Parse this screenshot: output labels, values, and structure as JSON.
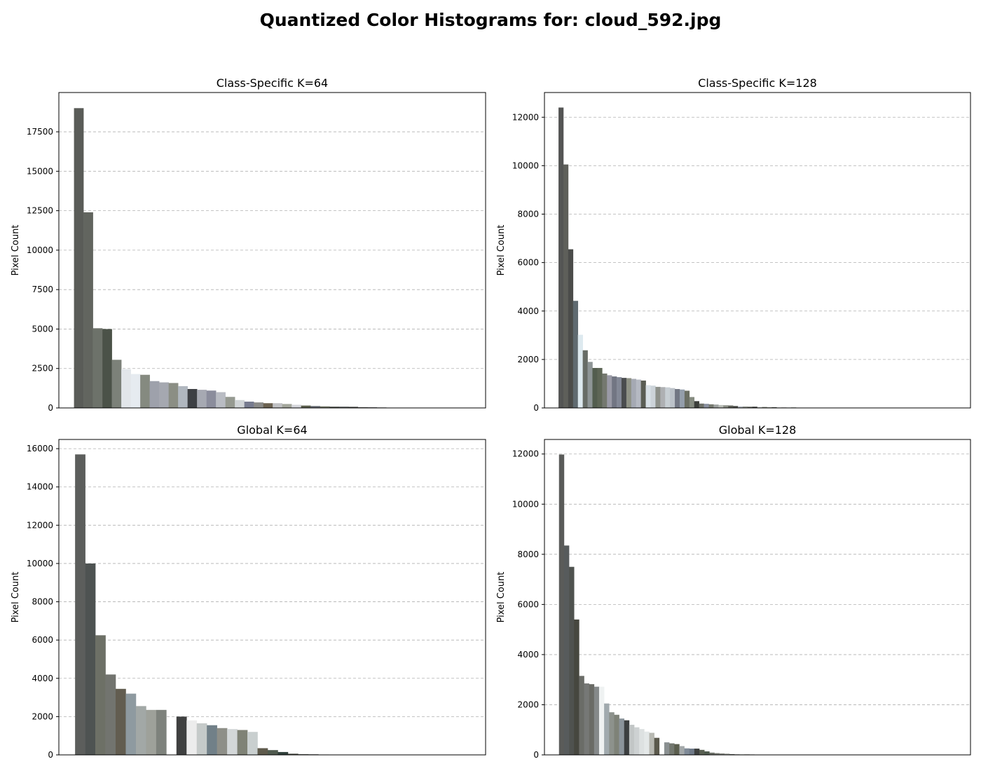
{
  "figure": {
    "title": "Quantized Color Histograms for: cloud_592.jpg"
  },
  "chart_data": [
    {
      "type": "bar",
      "title": "Class-Specific K=64",
      "xlabel": "",
      "ylabel": "Pixel Count",
      "ylim": [
        0,
        19990
      ],
      "yticks": [
        0,
        2500,
        5000,
        7500,
        10000,
        12500,
        15000,
        17500
      ],
      "xlim": [
        -2.1,
        43
      ],
      "grid": "y-dashed",
      "values": [
        19000,
        12400,
        5050,
        5000,
        3050,
        2450,
        2150,
        2100,
        1700,
        1620,
        1580,
        1380,
        1200,
        1150,
        1100,
        1000,
        700,
        500,
        400,
        350,
        300,
        300,
        250,
        200,
        150,
        120,
        100,
        80,
        80,
        70,
        50,
        40,
        30,
        20,
        20
      ],
      "colors": [
        "#5a5c58",
        "#62655f",
        "#6d726a",
        "#4b5248",
        "#7c8179",
        "#e2e6ea",
        "#e6ebf0",
        "#858a80",
        "#9ea1ab",
        "#a5a8b0",
        "#8b8e84",
        "#b0b7bf",
        "#3d4044",
        "#a6a9b2",
        "#8b8d9c",
        "#b9bcc3",
        "#969a91",
        "#d0d4d6",
        "#777b8f",
        "#8a8a88",
        "#6b6150",
        "#c0c1c4",
        "#a3a69b",
        "#d5d6db",
        "#5b5e4c",
        "#646970",
        "#707565",
        "#4c4f4a",
        "#585d5b",
        "#424540",
        "#6a6d68",
        "#56585a",
        "#4e5450",
        "#3f4240",
        "#5e6260"
      ]
    },
    {
      "type": "bar",
      "title": "Class-Specific K=128",
      "xlabel": "",
      "ylabel": "Pixel Count",
      "ylim": [
        0,
        13020
      ],
      "yticks": [
        0,
        2000,
        4000,
        6000,
        8000,
        10000,
        12000
      ],
      "xlim": [
        -3.4,
        84.5
      ],
      "grid": "y-dashed",
      "values": [
        12400,
        10050,
        6550,
        4420,
        3020,
        2380,
        1900,
        1650,
        1650,
        1420,
        1350,
        1300,
        1270,
        1240,
        1230,
        1200,
        1170,
        1130,
        940,
        920,
        870,
        860,
        850,
        820,
        780,
        760,
        710,
        450,
        280,
        180,
        170,
        150,
        140,
        120,
        110,
        100,
        80,
        60,
        60,
        50,
        50,
        40,
        40,
        30,
        30,
        20,
        20,
        20,
        20,
        10,
        10
      ],
      "colors": [
        "#545554",
        "#5e5f5a",
        "#4b4c4a",
        "#5f6a70",
        "#dde9ef",
        "#676c66",
        "#8e9596",
        "#535d4e",
        "#5e6656",
        "#74786f",
        "#9a9aa6",
        "#727683",
        "#838896",
        "#4a4c4e",
        "#8f9286",
        "#a5a9b3",
        "#b5b9c2",
        "#5a5d54",
        "#d8e0e6",
        "#ccd3d9",
        "#8e918b",
        "#aeb0b3",
        "#c7ced3",
        "#bcc2c9",
        "#727784",
        "#949eab",
        "#6a6e63",
        "#858b80",
        "#3b3e3a",
        "#6d7067",
        "#8a90a0",
        "#767a70",
        "#9ea2a0",
        "#b9bdb7",
        "#8b8f86",
        "#5d6058",
        "#4c4e4a",
        "#aab0b8",
        "#8f938c",
        "#656860",
        "#363936",
        "#c4c8c6",
        "#7b7f78",
        "#9c9f98",
        "#505451",
        "#b3b7b2",
        "#6e716c",
        "#c9cdd0",
        "#55584f",
        "#a4a8a2",
        "#787c76"
      ]
    },
    {
      "type": "bar",
      "title": "Global K=64",
      "xlabel": "",
      "ylabel": "Pixel Count",
      "ylim": [
        0,
        16480
      ],
      "yticks": [
        0,
        2000,
        4000,
        6000,
        8000,
        10000,
        12000,
        14000,
        16000
      ],
      "xlim": [
        -2.1,
        40
      ],
      "grid": "y-dashed",
      "values": [
        15700,
        10000,
        6250,
        4200,
        3450,
        3200,
        2550,
        2350,
        2350,
        0,
        2000,
        1800,
        1650,
        1550,
        1400,
        1350,
        1300,
        1200,
        350,
        250,
        150,
        60,
        40,
        30,
        20
      ],
      "colors": [
        "#5c5e5c",
        "#4e5352",
        "#6d7066",
        "#72746f",
        "#625d50",
        "#8e9aa0",
        "#a2a8a6",
        "#9ea19a",
        "#7e827c",
        "#ffffff",
        "#3f4040",
        "#ececec",
        "#c5cac9",
        "#718088",
        "#8e8f88",
        "#d3d7d8",
        "#7f8276",
        "#c9cfcf",
        "#5e5a4c",
        "#4f5a4e",
        "#30403a",
        "#46483f",
        "#6a6e67",
        "#575a55",
        "#84887f"
      ]
    },
    {
      "type": "bar",
      "title": "Global K=128",
      "xlabel": "",
      "ylabel": "Pixel Count",
      "ylim": [
        0,
        12580
      ],
      "yticks": [
        0,
        2000,
        4000,
        6000,
        8000,
        10000,
        12000
      ],
      "xlim": [
        -3.4,
        81.6
      ],
      "grid": "y-dashed",
      "values": [
        11980,
        8350,
        7500,
        5400,
        3150,
        2850,
        2820,
        2720,
        2720,
        2050,
        1700,
        1600,
        1450,
        1380,
        1200,
        1100,
        1030,
        930,
        880,
        680,
        0,
        500,
        460,
        430,
        350,
        260,
        250,
        250,
        200,
        140,
        90,
        70,
        60,
        50,
        30,
        20,
        20,
        20,
        20,
        10,
        10,
        10,
        10,
        10,
        10
      ],
      "colors": [
        "#5a5b59",
        "#575b5c",
        "#4f524f",
        "#46473f",
        "#6a6c67",
        "#767876",
        "#6a6b66",
        "#85898a",
        "#eff2f2",
        "#a1aaae",
        "#8d928c",
        "#7e8278",
        "#8b949b",
        "#3c3f40",
        "#c2c6c6",
        "#cdd1d2",
        "#dde1e1",
        "#e4e8e8",
        "#b8b9b2",
        "#5b594c",
        "#ffffff",
        "#8a9091",
        "#73786f",
        "#5b5e4e",
        "#a4a9aa",
        "#7f8a97",
        "#6f7a88",
        "#3d403f",
        "#596052",
        "#4e5a4d",
        "#6a6e66",
        "#777b73",
        "#878a83",
        "#999c95",
        "#5c5f5a",
        "#484b47",
        "#a8aba5",
        "#6d706a",
        "#b7bab4",
        "#3f423d",
        "#8e918b",
        "#62655f",
        "#4a4d48",
        "#7a7d77",
        "#565955"
      ]
    }
  ]
}
